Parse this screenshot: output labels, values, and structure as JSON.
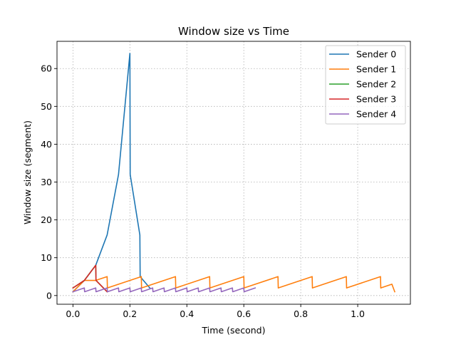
{
  "chart_data": {
    "type": "line",
    "title": "Window size vs Time",
    "xlabel": "Time (second)",
    "ylabel": "Window size (segment)",
    "xlim": [
      -0.056,
      1.185
    ],
    "ylim": [
      -2.3,
      67.2
    ],
    "xticks": [
      0.0,
      0.2,
      0.4,
      0.6,
      0.8,
      1.0
    ],
    "xtick_labels": [
      "0.0",
      "0.2",
      "0.4",
      "0.6",
      "0.8",
      "1.0"
    ],
    "yticks": [
      0,
      10,
      20,
      30,
      40,
      50,
      60
    ],
    "ytick_labels": [
      "0",
      "10",
      "20",
      "30",
      "40",
      "50",
      "60"
    ],
    "grid": true,
    "legend_position": "top-right",
    "series": [
      {
        "name": "Sender 0",
        "color": "#1f77b4",
        "points": [
          [
            0.0,
            1
          ],
          [
            0.04,
            4
          ],
          [
            0.08,
            8
          ],
          [
            0.12,
            16
          ],
          [
            0.16,
            32
          ],
          [
            0.2,
            64
          ],
          [
            0.201,
            32
          ],
          [
            0.235,
            16
          ],
          [
            0.236,
            5
          ],
          [
            0.27,
            2
          ]
        ]
      },
      {
        "name": "Sender 1",
        "color": "#ff7f0e",
        "points": [
          [
            0.0,
            1
          ],
          [
            0.04,
            4
          ],
          [
            0.08,
            4
          ],
          [
            0.12,
            5
          ],
          [
            0.121,
            2
          ],
          [
            0.24,
            5
          ],
          [
            0.241,
            2
          ],
          [
            0.36,
            5
          ],
          [
            0.361,
            2
          ],
          [
            0.48,
            5
          ],
          [
            0.481,
            2
          ],
          [
            0.6,
            5
          ],
          [
            0.601,
            2
          ],
          [
            0.72,
            5
          ],
          [
            0.721,
            2
          ],
          [
            0.84,
            5
          ],
          [
            0.841,
            2
          ],
          [
            0.96,
            5
          ],
          [
            0.961,
            2
          ],
          [
            1.08,
            5
          ],
          [
            1.081,
            2
          ],
          [
            1.12,
            3
          ],
          [
            1.13,
            1
          ]
        ]
      },
      {
        "name": "Sender 2",
        "color": "#2ca02c",
        "points": [
          [
            0.0,
            2
          ],
          [
            0.04,
            4
          ],
          [
            0.08,
            8
          ],
          [
            0.081,
            4
          ],
          [
            0.12,
            1
          ]
        ]
      },
      {
        "name": "Sender 3",
        "color": "#d62728",
        "points": [
          [
            0.0,
            2
          ],
          [
            0.04,
            4
          ],
          [
            0.08,
            8
          ],
          [
            0.081,
            4
          ],
          [
            0.12,
            1
          ]
        ]
      },
      {
        "name": "Sender 4",
        "color": "#9467bd",
        "points": [
          [
            0.0,
            1
          ],
          [
            0.04,
            2
          ],
          [
            0.041,
            1
          ],
          [
            0.08,
            2
          ],
          [
            0.081,
            1
          ],
          [
            0.12,
            2
          ],
          [
            0.121,
            1
          ],
          [
            0.16,
            2
          ],
          [
            0.161,
            1
          ],
          [
            0.2,
            2
          ],
          [
            0.201,
            1
          ],
          [
            0.24,
            2
          ],
          [
            0.241,
            1
          ],
          [
            0.28,
            2
          ],
          [
            0.281,
            1
          ],
          [
            0.32,
            2
          ],
          [
            0.321,
            1
          ],
          [
            0.36,
            2
          ],
          [
            0.361,
            1
          ],
          [
            0.4,
            2
          ],
          [
            0.401,
            1
          ],
          [
            0.44,
            2
          ],
          [
            0.441,
            1
          ],
          [
            0.48,
            2
          ],
          [
            0.481,
            1
          ],
          [
            0.52,
            2
          ],
          [
            0.521,
            1
          ],
          [
            0.56,
            2
          ],
          [
            0.561,
            1
          ],
          [
            0.6,
            2
          ],
          [
            0.601,
            1
          ],
          [
            0.64,
            2
          ]
        ]
      }
    ]
  }
}
